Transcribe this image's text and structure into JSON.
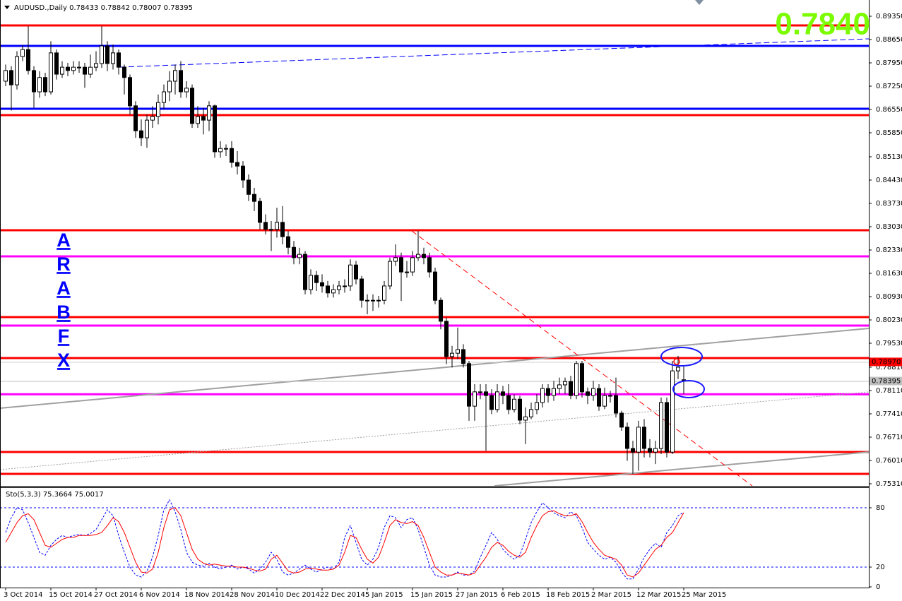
{
  "chart_data": [
    {
      "type": "candlestick",
      "title": "AUDUSD.,Daily  0.78433 0.78842 0.78007 0.78395",
      "big_label": "0.7840",
      "watermark": [
        "A",
        "R",
        "A",
        "B",
        "F",
        "X"
      ],
      "xlim": [
        -1,
        152.75
      ],
      "xticks": [
        {
          "value": 0,
          "label": "3 Oct 2014"
        },
        {
          "value": 8,
          "label": "15 Oct 2014"
        },
        {
          "value": 16,
          "label": "27 Oct 2014"
        },
        {
          "value": 24,
          "label": "6 Nov 2014"
        },
        {
          "value": 32,
          "label": "18 Nov 2014"
        },
        {
          "value": 40,
          "label": "28 Nov 2014"
        },
        {
          "value": 48,
          "label": "10 Dec 2014"
        },
        {
          "value": 56,
          "label": "22 Dec 2014"
        },
        {
          "value": 64,
          "label": "5 Jan 2015"
        },
        {
          "value": 72,
          "label": "15 Jan 2015"
        },
        {
          "value": 80,
          "label": "27 Jan 2015"
        },
        {
          "value": 88,
          "label": "6 Feb 2015"
        },
        {
          "value": 96,
          "label": "18 Feb 2015"
        },
        {
          "value": 104,
          "label": "2 Mar 2015"
        },
        {
          "value": 112,
          "label": "12 Mar 2015"
        },
        {
          "value": 120,
          "label": "25 Mar 2015"
        }
      ],
      "ylim": [
        0.75246,
        0.89838
      ],
      "yticks": [
        {
          "value": 0.8935,
          "label": "0.89350"
        },
        {
          "value": 0.8865,
          "label": "0.88650"
        },
        {
          "value": 0.8795,
          "label": "0.87950"
        },
        {
          "value": 0.8725,
          "label": "0.87250"
        },
        {
          "value": 0.8655,
          "label": "0.86550"
        },
        {
          "value": 0.8585,
          "label": "0.85850"
        },
        {
          "value": 0.8513,
          "label": "0.85130"
        },
        {
          "value": 0.8443,
          "label": "0.84430"
        },
        {
          "value": 0.8373,
          "label": "0.83730"
        },
        {
          "value": 0.8303,
          "label": "0.83030"
        },
        {
          "value": 0.8233,
          "label": "0.82330"
        },
        {
          "value": 0.8163,
          "label": "0.81630"
        },
        {
          "value": 0.8093,
          "label": "0.80930"
        },
        {
          "value": 0.8023,
          "label": "0.80230"
        },
        {
          "value": 0.7953,
          "label": "0.79530"
        },
        {
          "value": 0.7881,
          "label": "0.78810"
        },
        {
          "value": 0.7811,
          "label": "0.78110"
        },
        {
          "value": 0.7741,
          "label": "0.77410"
        },
        {
          "value": 0.7671,
          "label": "0.76710"
        },
        {
          "value": 0.7601,
          "label": "0.76010"
        },
        {
          "value": 0.7531,
          "label": "0.75310"
        }
      ],
      "grid": false,
      "levels": [
        {
          "value": 0.89074,
          "color": "#ff0000"
        },
        {
          "value": 0.88459,
          "color": "#0000ff"
        },
        {
          "value": 0.86572,
          "color": "#0000ff"
        },
        {
          "value": 0.86381,
          "color": "#ff0000"
        },
        {
          "value": 0.82924,
          "color": "#ff0000"
        },
        {
          "value": 0.82139,
          "color": "#ff00ff"
        },
        {
          "value": 0.80315,
          "color": "#ff0000"
        },
        {
          "value": 0.80061,
          "color": "#ff00ff"
        },
        {
          "value": 0.79085,
          "color": "#ff0000"
        },
        {
          "value": 0.77997,
          "color": "#ff00ff"
        },
        {
          "value": 0.76265,
          "color": "#ff0000"
        },
        {
          "value": 0.75607,
          "color": "#ff0000"
        }
      ],
      "markers": [
        {
          "value": 0.7897,
          "label": "0.78970",
          "color": "#ff0000"
        },
        {
          "value": 0.78395,
          "label": "0.78395",
          "color": "#c0c0c0"
        }
      ],
      "ohlc": [
        [
          0.874,
          0.879,
          0.8725,
          0.8772
        ],
        [
          0.8772,
          0.8785,
          0.8652,
          0.8729
        ],
        [
          0.8729,
          0.883,
          0.8715,
          0.8814
        ],
        [
          0.8814,
          0.8848,
          0.88,
          0.8835
        ],
        [
          0.8835,
          0.8905,
          0.876,
          0.8772
        ],
        [
          0.8772,
          0.8785,
          0.866,
          0.8708
        ],
        [
          0.8708,
          0.877,
          0.869,
          0.8751
        ],
        [
          0.8751,
          0.8765,
          0.8695,
          0.8708
        ],
        [
          0.8708,
          0.886,
          0.87,
          0.8825
        ],
        [
          0.8825,
          0.8835,
          0.8745,
          0.8761
        ],
        [
          0.8761,
          0.88,
          0.875,
          0.8782
        ],
        [
          0.8782,
          0.8795,
          0.8755,
          0.8772
        ],
        [
          0.8772,
          0.88,
          0.876,
          0.8782
        ],
        [
          0.8782,
          0.88,
          0.8765,
          0.8782
        ],
        [
          0.8782,
          0.8795,
          0.872,
          0.8761
        ],
        [
          0.8761,
          0.882,
          0.875,
          0.8782
        ],
        [
          0.8782,
          0.883,
          0.877,
          0.8793
        ],
        [
          0.8793,
          0.8905,
          0.878,
          0.8846
        ],
        [
          0.8846,
          0.886,
          0.877,
          0.8793
        ],
        [
          0.8793,
          0.885,
          0.8775,
          0.8825
        ],
        [
          0.8825,
          0.8835,
          0.876,
          0.8782
        ],
        [
          0.8782,
          0.879,
          0.87,
          0.8751
        ],
        [
          0.8751,
          0.876,
          0.864,
          0.8666
        ],
        [
          0.8666,
          0.868,
          0.857,
          0.8591
        ],
        [
          0.8591,
          0.8625,
          0.8545,
          0.857
        ],
        [
          0.857,
          0.864,
          0.854,
          0.8623
        ],
        [
          0.8623,
          0.8665,
          0.86,
          0.8634
        ],
        [
          0.8634,
          0.87,
          0.861,
          0.8676
        ],
        [
          0.8676,
          0.873,
          0.8655,
          0.8708
        ],
        [
          0.8708,
          0.877,
          0.868,
          0.874
        ],
        [
          0.874,
          0.879,
          0.87,
          0.8772
        ],
        [
          0.8772,
          0.88,
          0.869,
          0.8708
        ],
        [
          0.8708,
          0.874,
          0.869,
          0.8719
        ],
        [
          0.8719,
          0.873,
          0.86,
          0.8613
        ],
        [
          0.8613,
          0.8665,
          0.86,
          0.8634
        ],
        [
          0.8634,
          0.866,
          0.858,
          0.8623
        ],
        [
          0.8623,
          0.868,
          0.859,
          0.8666
        ],
        [
          0.8666,
          0.867,
          0.851,
          0.8528
        ],
        [
          0.8528,
          0.856,
          0.851,
          0.8538
        ],
        [
          0.8538,
          0.855,
          0.8515,
          0.8538
        ],
        [
          0.8538,
          0.856,
          0.848,
          0.8496
        ],
        [
          0.8496,
          0.853,
          0.846,
          0.8485
        ],
        [
          0.8485,
          0.85,
          0.842,
          0.8443
        ],
        [
          0.8443,
          0.846,
          0.838,
          0.84
        ],
        [
          0.84,
          0.842,
          0.835,
          0.8379
        ],
        [
          0.8379,
          0.839,
          0.8295,
          0.8316
        ],
        [
          0.8316,
          0.834,
          0.828,
          0.8295
        ],
        [
          0.8295,
          0.832,
          0.823,
          0.8295
        ],
        [
          0.8295,
          0.836,
          0.827,
          0.8316
        ],
        [
          0.8316,
          0.8365,
          0.825,
          0.8273
        ],
        [
          0.8273,
          0.829,
          0.822,
          0.8241
        ],
        [
          0.8241,
          0.826,
          0.819,
          0.821
        ],
        [
          0.821,
          0.824,
          0.819,
          0.822
        ],
        [
          0.822,
          0.823,
          0.81,
          0.8114
        ],
        [
          0.8114,
          0.8175,
          0.81,
          0.8157
        ],
        [
          0.8157,
          0.817,
          0.811,
          0.8135
        ],
        [
          0.8135,
          0.816,
          0.8105,
          0.8125
        ],
        [
          0.8125,
          0.814,
          0.809,
          0.8104
        ],
        [
          0.8104,
          0.813,
          0.809,
          0.8114
        ],
        [
          0.8114,
          0.814,
          0.81,
          0.8125
        ],
        [
          0.8125,
          0.8145,
          0.8105,
          0.8125
        ],
        [
          0.8125,
          0.8205,
          0.811,
          0.8188
        ],
        [
          0.8188,
          0.82,
          0.813,
          0.8146
        ],
        [
          0.8146,
          0.8155,
          0.806,
          0.8082
        ],
        [
          0.8082,
          0.81,
          0.804,
          0.8082
        ],
        [
          0.8082,
          0.81,
          0.805,
          0.8082
        ],
        [
          0.8082,
          0.8095,
          0.806,
          0.8082
        ],
        [
          0.8082,
          0.814,
          0.807,
          0.8125
        ],
        [
          0.8125,
          0.821,
          0.8115,
          0.8199
        ],
        [
          0.8199,
          0.825,
          0.8185,
          0.821
        ],
        [
          0.821,
          0.8225,
          0.808,
          0.8167
        ],
        [
          0.8167,
          0.82,
          0.815,
          0.8167
        ],
        [
          0.8167,
          0.823,
          0.8155,
          0.821
        ],
        [
          0.821,
          0.829,
          0.82,
          0.822
        ],
        [
          0.822,
          0.824,
          0.819,
          0.821
        ],
        [
          0.821,
          0.8225,
          0.815,
          0.8167
        ],
        [
          0.8167,
          0.818,
          0.807,
          0.8082
        ],
        [
          0.8082,
          0.809,
          0.7995,
          0.8019
        ],
        [
          0.8019,
          0.803,
          0.789,
          0.7913
        ],
        [
          0.7913,
          0.7945,
          0.788,
          0.7923
        ],
        [
          0.7923,
          0.8,
          0.7905,
          0.7934
        ],
        [
          0.7934,
          0.795,
          0.788,
          0.7892
        ],
        [
          0.7892,
          0.79,
          0.772,
          0.7764
        ],
        [
          0.7764,
          0.783,
          0.772,
          0.7807
        ],
        [
          0.7807,
          0.783,
          0.7785,
          0.7807
        ],
        [
          0.7807,
          0.783,
          0.763,
          0.7796
        ],
        [
          0.7796,
          0.7815,
          0.774,
          0.7754
        ],
        [
          0.7754,
          0.783,
          0.7745,
          0.7807
        ],
        [
          0.7807,
          0.7825,
          0.777,
          0.7796
        ],
        [
          0.7796,
          0.783,
          0.774,
          0.7754
        ],
        [
          0.7754,
          0.78,
          0.7745,
          0.7785
        ],
        [
          0.7785,
          0.7795,
          0.771,
          0.7722
        ],
        [
          0.7722,
          0.776,
          0.765,
          0.7732
        ],
        [
          0.7732,
          0.7775,
          0.7725,
          0.7754
        ],
        [
          0.7754,
          0.78,
          0.774,
          0.7775
        ],
        [
          0.7775,
          0.783,
          0.776,
          0.7817
        ],
        [
          0.7817,
          0.783,
          0.7775,
          0.7796
        ],
        [
          0.7796,
          0.784,
          0.778,
          0.7817
        ],
        [
          0.7817,
          0.785,
          0.78,
          0.7828
        ],
        [
          0.7828,
          0.785,
          0.78,
          0.7838
        ],
        [
          0.7838,
          0.7855,
          0.7785,
          0.7796
        ],
        [
          0.7796,
          0.79,
          0.7785,
          0.7892
        ],
        [
          0.7892,
          0.79,
          0.779,
          0.7807
        ],
        [
          0.7807,
          0.782,
          0.777,
          0.7796
        ],
        [
          0.7796,
          0.784,
          0.778,
          0.7817
        ],
        [
          0.7817,
          0.783,
          0.775,
          0.7764
        ],
        [
          0.7764,
          0.782,
          0.7755,
          0.7796
        ],
        [
          0.7796,
          0.781,
          0.7775,
          0.7796
        ],
        [
          0.7796,
          0.785,
          0.773,
          0.7743
        ],
        [
          0.7743,
          0.775,
          0.769,
          0.7701
        ],
        [
          0.7701,
          0.7715,
          0.76,
          0.7637
        ],
        [
          0.7637,
          0.766,
          0.7561,
          0.7626
        ],
        [
          0.7626,
          0.772,
          0.757,
          0.7701
        ],
        [
          0.7701,
          0.7725,
          0.761,
          0.7637
        ],
        [
          0.7637,
          0.7665,
          0.761,
          0.7626
        ],
        [
          0.7626,
          0.766,
          0.759,
          0.7637
        ],
        [
          0.7637,
          0.779,
          0.762,
          0.7775
        ],
        [
          0.7775,
          0.779,
          0.761,
          0.7626
        ],
        [
          0.7626,
          0.79,
          0.762,
          0.787
        ],
        [
          0.787,
          0.7915,
          0.7845,
          0.7881
        ],
        [
          0.78433,
          0.78842,
          0.78007,
          0.78395
        ]
      ]
    },
    {
      "type": "line",
      "title": "Sto(5,3,3) 75.3664 75.0017",
      "ylim": [
        0,
        100
      ],
      "yticks": [
        80,
        20,
        0
      ],
      "grid": true,
      "series": [
        {
          "color": "#0000ff",
          "dash": true,
          "values": [
            55,
            70,
            80,
            78,
            65,
            50,
            35,
            32,
            42,
            48,
            52,
            50,
            52,
            53,
            52,
            54,
            58,
            68,
            78,
            72,
            52,
            35,
            20,
            12,
            10,
            16,
            30,
            52,
            78,
            88,
            76,
            58,
            35,
            25,
            22,
            21,
            24,
            20,
            18,
            20,
            22,
            18,
            20,
            18,
            14,
            18,
            25,
            35,
            28,
            15,
            12,
            14,
            18,
            22,
            18,
            15,
            18,
            20,
            18,
            25,
            50,
            62,
            45,
            28,
            22,
            28,
            40,
            60,
            72,
            70,
            60,
            68,
            70,
            58,
            40,
            22,
            12,
            10,
            10,
            12,
            15,
            12,
            12,
            16,
            30,
            42,
            55,
            48,
            38,
            32,
            28,
            32,
            48,
            65,
            76,
            85,
            80,
            75,
            72,
            70,
            76,
            72,
            60,
            45,
            38,
            32,
            28,
            30,
            25,
            15,
            8,
            8,
            18,
            30,
            38,
            44,
            40,
            55,
            62,
            72,
            75.3664
          ]
        },
        {
          "color": "#ff0000",
          "dash": false,
          "values": [
            45,
            55,
            65,
            72,
            74,
            68,
            55,
            42,
            40,
            44,
            48,
            50,
            50,
            52,
            52,
            52,
            53,
            55,
            62,
            70,
            66,
            55,
            40,
            25,
            15,
            14,
            18,
            35,
            60,
            78,
            80,
            72,
            55,
            38,
            28,
            24,
            22,
            23,
            22,
            21,
            21,
            20,
            20,
            19,
            17,
            16,
            18,
            28,
            32,
            24,
            16,
            14,
            15,
            18,
            19,
            18,
            17,
            17,
            18,
            22,
            35,
            52,
            50,
            38,
            28,
            24,
            30,
            45,
            62,
            68,
            65,
            64,
            66,
            62,
            50,
            35,
            20,
            15,
            12,
            12,
            14,
            13,
            12,
            14,
            22,
            30,
            40,
            45,
            42,
            36,
            32,
            30,
            35,
            50,
            62,
            72,
            76,
            77,
            74,
            72,
            72,
            74,
            66,
            55,
            45,
            38,
            32,
            30,
            28,
            22,
            12,
            10,
            14,
            22,
            30,
            38,
            42,
            50,
            55,
            65,
            75.0017
          ]
        }
      ]
    }
  ]
}
